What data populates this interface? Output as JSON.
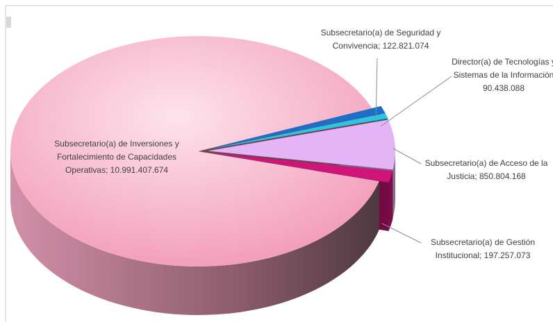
{
  "chart_data": {
    "type": "pie3d",
    "categories": [
      "Subsecretario(a) de Seguridad y Convivencia;",
      "Director(a) de Tecnologías y Sistemas de la Información",
      "Subsecretario(a) de Acceso de la Justicia;",
      "Subsecretario(a) de Gestión Institucional;",
      "Subsecretario(a) de Inversiones y Fortalecimiento de Capacidades Operativas;"
    ],
    "values": [
      122821074,
      90438088,
      850804168,
      197257073,
      10991407674
    ],
    "value_labels": [
      "122.821.074",
      "90.438.088",
      "850.804.168",
      "197.257.073",
      "10.991.407.674"
    ],
    "colors": [
      "#1f6fc9",
      "#2ec4e6",
      "#e4b4f6",
      "#d0147a",
      "#f4a6c0"
    ]
  }
}
